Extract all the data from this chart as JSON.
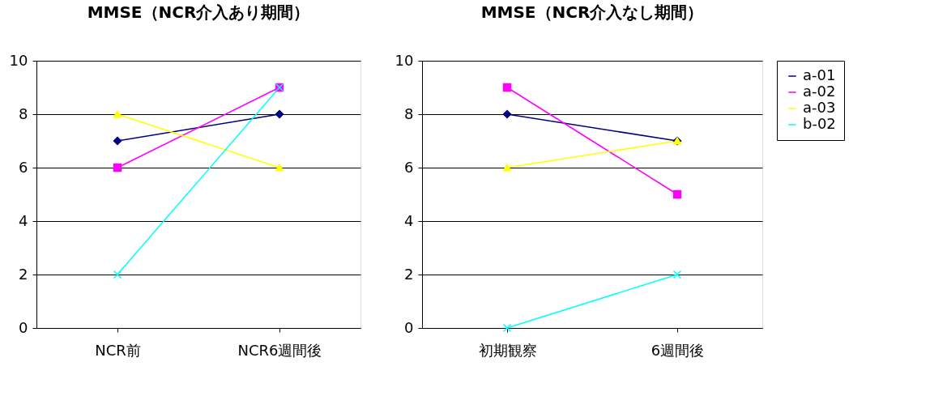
{
  "chart_data": [
    {
      "type": "line",
      "title": "MMSE（NCR介入あり期間）",
      "categories": [
        "NCR前",
        "NCR6週間後"
      ],
      "ylim": [
        0,
        10
      ],
      "yticks": [
        0,
        2,
        4,
        6,
        8,
        10
      ],
      "grid": "y",
      "legend": false,
      "line_style": "solid",
      "series": [
        {
          "color": "#000080",
          "marker": "diamond",
          "values": [
            7,
            8
          ]
        },
        {
          "color": "#ff00ff",
          "marker": "square",
          "values": [
            6,
            9
          ]
        },
        {
          "color": "#ffff00",
          "marker": "triangle",
          "values": [
            8,
            6
          ]
        },
        {
          "color": "#00ffff",
          "marker": "cross",
          "values": [
            2,
            9
          ]
        }
      ]
    },
    {
      "type": "line",
      "title": "MMSE（NCR介入なし期間）",
      "categories": [
        "初期観察",
        "6週間後"
      ],
      "ylim": [
        0,
        10
      ],
      "yticks": [
        0,
        2,
        4,
        6,
        8,
        10
      ],
      "grid": "y",
      "legend": "right",
      "line_style": "solid",
      "series": [
        {
          "name": "a-01",
          "color": "#000080",
          "marker": "diamond",
          "values": [
            8,
            7
          ]
        },
        {
          "name": "a-02",
          "color": "#ff00ff",
          "marker": "square",
          "values": [
            9,
            5
          ]
        },
        {
          "name": "a-03",
          "color": "#ffff00",
          "marker": "triangle",
          "values": [
            6,
            7
          ]
        },
        {
          "name": "b-02",
          "color": "#00ffff",
          "marker": "cross",
          "values": [
            0,
            2
          ]
        }
      ]
    }
  ]
}
